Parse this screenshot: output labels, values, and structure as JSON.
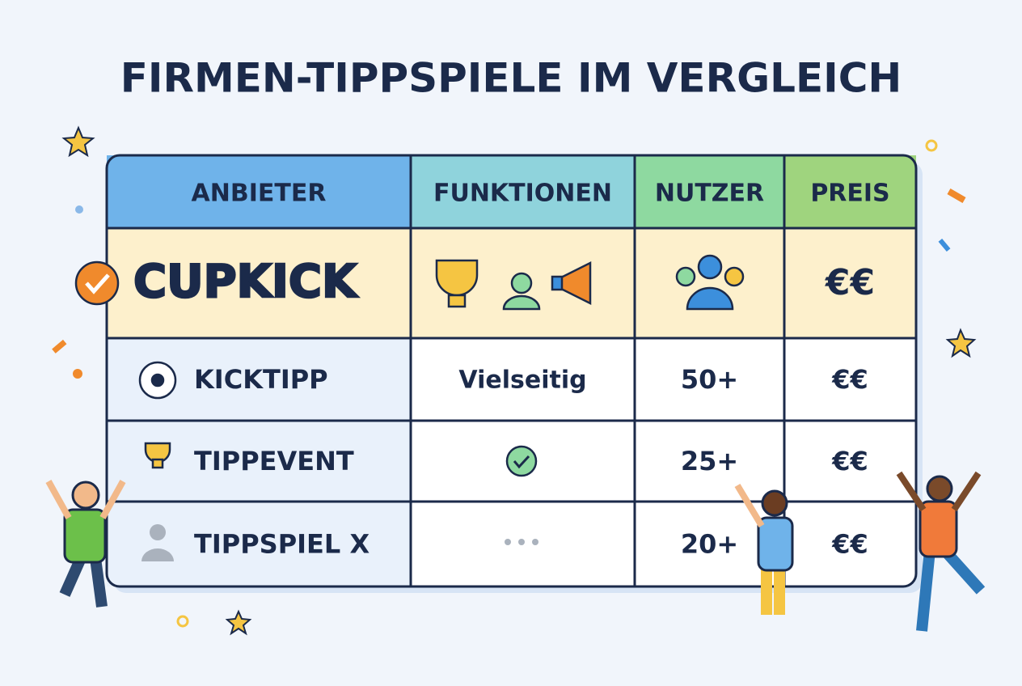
{
  "title": "FIRMEN-TIPPSPIELE IM VERGLEICH",
  "table": {
    "headers": [
      "ANBIETER",
      "FUNKTIONEN",
      "NUTZER",
      "PREIS"
    ],
    "rows": [
      {
        "provider": "CUPKICK",
        "price": "€€"
      },
      {
        "provider": "KICKTIPP",
        "features": "Vielseitig",
        "users": "50+",
        "price": "€€"
      },
      {
        "provider": "TIPPEVENT",
        "users": "25+",
        "price": "€€"
      },
      {
        "provider": "TIPPSPIEL X",
        "users": "20+",
        "price": "€€"
      }
    ]
  }
}
